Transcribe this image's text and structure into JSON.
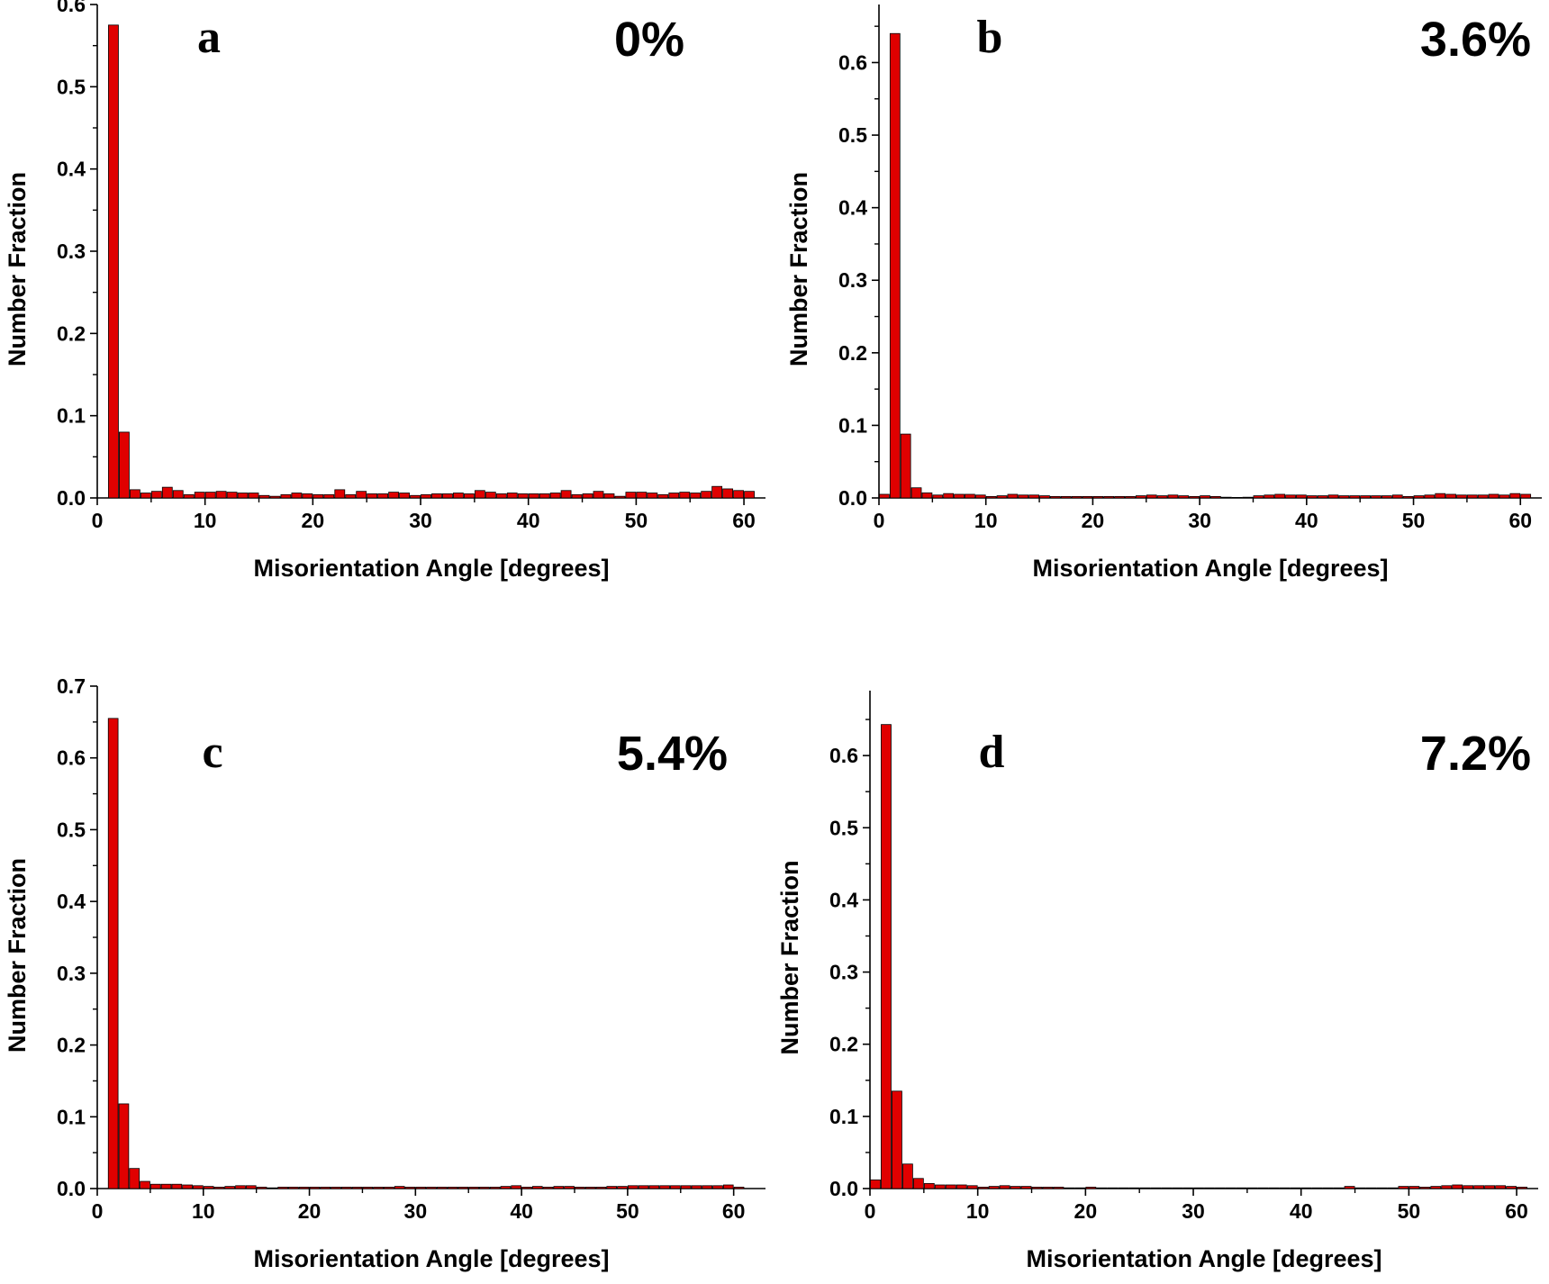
{
  "chart_data": [
    {
      "type": "bar",
      "panel": "a",
      "title": "0%",
      "xlabel": "Misorientation Angle [degrees]",
      "ylabel": "Number Fraction",
      "xlim": [
        0,
        62
      ],
      "ylim": [
        0,
        0.6
      ],
      "yticks": [
        "0.0",
        "0.1",
        "0.2",
        "0.3",
        "0.4",
        "0.5",
        "0.6"
      ],
      "xticks": [
        "0",
        "10",
        "20",
        "30",
        "40",
        "50",
        "60"
      ],
      "bar_color": "#e00000",
      "x": [
        1,
        2,
        3,
        4,
        5,
        6,
        7,
        8,
        9,
        10,
        11,
        12,
        13,
        14,
        15,
        16,
        17,
        18,
        19,
        20,
        21,
        22,
        23,
        24,
        25,
        26,
        27,
        28,
        29,
        30,
        31,
        32,
        33,
        34,
        35,
        36,
        37,
        38,
        39,
        40,
        41,
        42,
        43,
        44,
        45,
        46,
        47,
        48,
        49,
        50,
        51,
        52,
        53,
        54,
        55,
        56,
        57,
        58,
        59,
        60
      ],
      "values": [
        0.575,
        0.08,
        0.01,
        0.006,
        0.008,
        0.013,
        0.009,
        0.004,
        0.007,
        0.007,
        0.008,
        0.007,
        0.006,
        0.006,
        0.003,
        0.002,
        0.004,
        0.006,
        0.005,
        0.004,
        0.004,
        0.01,
        0.004,
        0.008,
        0.005,
        0.005,
        0.007,
        0.006,
        0.003,
        0.004,
        0.005,
        0.005,
        0.006,
        0.005,
        0.009,
        0.007,
        0.005,
        0.006,
        0.005,
        0.005,
        0.005,
        0.006,
        0.009,
        0.004,
        0.005,
        0.008,
        0.005,
        0.002,
        0.007,
        0.007,
        0.006,
        0.004,
        0.006,
        0.007,
        0.006,
        0.008,
        0.014,
        0.011,
        0.009,
        0.008
      ]
    },
    {
      "type": "bar",
      "panel": "b",
      "title": "3.6%",
      "xlabel": "Misorientation Angle [degrees]",
      "ylabel": "Number Fraction",
      "xlim": [
        0,
        62
      ],
      "ylim": [
        0,
        0.68
      ],
      "yticks": [
        "0.0",
        "0.1",
        "0.2",
        "0.3",
        "0.4",
        "0.5",
        "0.6"
      ],
      "xticks": [
        "0",
        "10",
        "20",
        "30",
        "40",
        "50",
        "60"
      ],
      "bar_color": "#e00000",
      "x": [
        0,
        1,
        2,
        3,
        4,
        5,
        6,
        7,
        8,
        9,
        10,
        11,
        12,
        13,
        14,
        15,
        16,
        17,
        18,
        19,
        20,
        21,
        22,
        23,
        24,
        25,
        26,
        27,
        28,
        29,
        30,
        31,
        32,
        33,
        34,
        35,
        36,
        37,
        38,
        39,
        40,
        41,
        42,
        43,
        44,
        45,
        46,
        47,
        48,
        49,
        50,
        51,
        52,
        53,
        54,
        55,
        56,
        57,
        58,
        59,
        60
      ],
      "values": [
        0.005,
        0.64,
        0.088,
        0.014,
        0.007,
        0.004,
        0.006,
        0.005,
        0.005,
        0.004,
        0.002,
        0.003,
        0.005,
        0.004,
        0.004,
        0.003,
        0.002,
        0.002,
        0.002,
        0.002,
        0.002,
        0.002,
        0.002,
        0.002,
        0.003,
        0.004,
        0.003,
        0.004,
        0.003,
        0.002,
        0.003,
        0.002,
        0.001,
        0.0,
        0.001,
        0.003,
        0.004,
        0.005,
        0.004,
        0.004,
        0.003,
        0.003,
        0.004,
        0.003,
        0.003,
        0.003,
        0.003,
        0.003,
        0.004,
        0.002,
        0.003,
        0.004,
        0.006,
        0.005,
        0.004,
        0.004,
        0.004,
        0.005,
        0.004,
        0.006,
        0.005
      ]
    },
    {
      "type": "bar",
      "panel": "c",
      "title": "5.4%",
      "xlabel": "Misorientation Angle [degrees]",
      "ylabel": "Number Fraction",
      "xlim": [
        0,
        63
      ],
      "ylim": [
        0,
        0.7
      ],
      "yticks": [
        "0.0",
        "0.1",
        "0.2",
        "0.3",
        "0.4",
        "0.5",
        "0.6",
        "0.7"
      ],
      "xticks": [
        "0",
        "10",
        "20",
        "30",
        "40",
        "50",
        "60"
      ],
      "bar_color": "#e00000",
      "x": [
        1,
        2,
        3,
        4,
        5,
        6,
        7,
        8,
        9,
        10,
        11,
        12,
        13,
        14,
        15,
        16,
        17,
        18,
        19,
        20,
        21,
        22,
        23,
        24,
        25,
        26,
        27,
        28,
        29,
        30,
        31,
        32,
        33,
        34,
        35,
        36,
        37,
        38,
        39,
        40,
        41,
        42,
        43,
        44,
        45,
        46,
        47,
        48,
        49,
        50,
        51,
        52,
        53,
        54,
        55,
        56,
        57,
        58,
        59,
        60
      ],
      "values": [
        0.655,
        0.118,
        0.028,
        0.01,
        0.006,
        0.006,
        0.006,
        0.005,
        0.004,
        0.003,
        0.002,
        0.003,
        0.004,
        0.004,
        0.002,
        0.001,
        0.002,
        0.002,
        0.002,
        0.002,
        0.002,
        0.002,
        0.002,
        0.002,
        0.002,
        0.002,
        0.002,
        0.003,
        0.002,
        0.002,
        0.002,
        0.002,
        0.002,
        0.002,
        0.002,
        0.002,
        0.002,
        0.003,
        0.004,
        0.002,
        0.003,
        0.002,
        0.003,
        0.003,
        0.002,
        0.002,
        0.002,
        0.003,
        0.003,
        0.004,
        0.004,
        0.004,
        0.004,
        0.004,
        0.004,
        0.004,
        0.004,
        0.004,
        0.005,
        0.002
      ]
    },
    {
      "type": "bar",
      "panel": "d",
      "title": "7.2%",
      "xlabel": "Misorientation Angle [degrees]",
      "ylabel": "Number Fraction",
      "xlim": [
        0,
        62
      ],
      "ylim": [
        0,
        0.69
      ],
      "yticks": [
        "0.0",
        "0.1",
        "0.2",
        "0.3",
        "0.4",
        "0.5",
        "0.6"
      ],
      "xticks": [
        "0",
        "10",
        "20",
        "30",
        "40",
        "50",
        "60"
      ],
      "bar_color": "#e00000",
      "x": [
        0,
        1,
        2,
        3,
        4,
        5,
        6,
        7,
        8,
        9,
        10,
        11,
        12,
        13,
        14,
        15,
        16,
        17,
        18,
        19,
        20,
        21,
        22,
        23,
        24,
        25,
        26,
        27,
        28,
        29,
        30,
        31,
        32,
        33,
        34,
        35,
        36,
        37,
        38,
        39,
        40,
        41,
        42,
        43,
        44,
        45,
        46,
        47,
        48,
        49,
        50,
        51,
        52,
        53,
        54,
        55,
        56,
        57,
        58,
        59,
        60
      ],
      "values": [
        0.012,
        0.643,
        0.135,
        0.034,
        0.014,
        0.007,
        0.005,
        0.005,
        0.005,
        0.004,
        0.002,
        0.003,
        0.004,
        0.003,
        0.003,
        0.002,
        0.002,
        0.002,
        0.001,
        0.001,
        0.002,
        0.001,
        0.001,
        0.001,
        0.001,
        0.001,
        0.001,
        0.001,
        0.001,
        0.001,
        0.001,
        0.001,
        0.001,
        0.001,
        0.001,
        0.001,
        0.001,
        0.001,
        0.001,
        0.001,
        0.001,
        0.001,
        0.001,
        0.001,
        0.003,
        0.001,
        0.001,
        0.001,
        0.001,
        0.003,
        0.003,
        0.002,
        0.003,
        0.004,
        0.005,
        0.004,
        0.004,
        0.004,
        0.004,
        0.003,
        0.002
      ]
    }
  ]
}
